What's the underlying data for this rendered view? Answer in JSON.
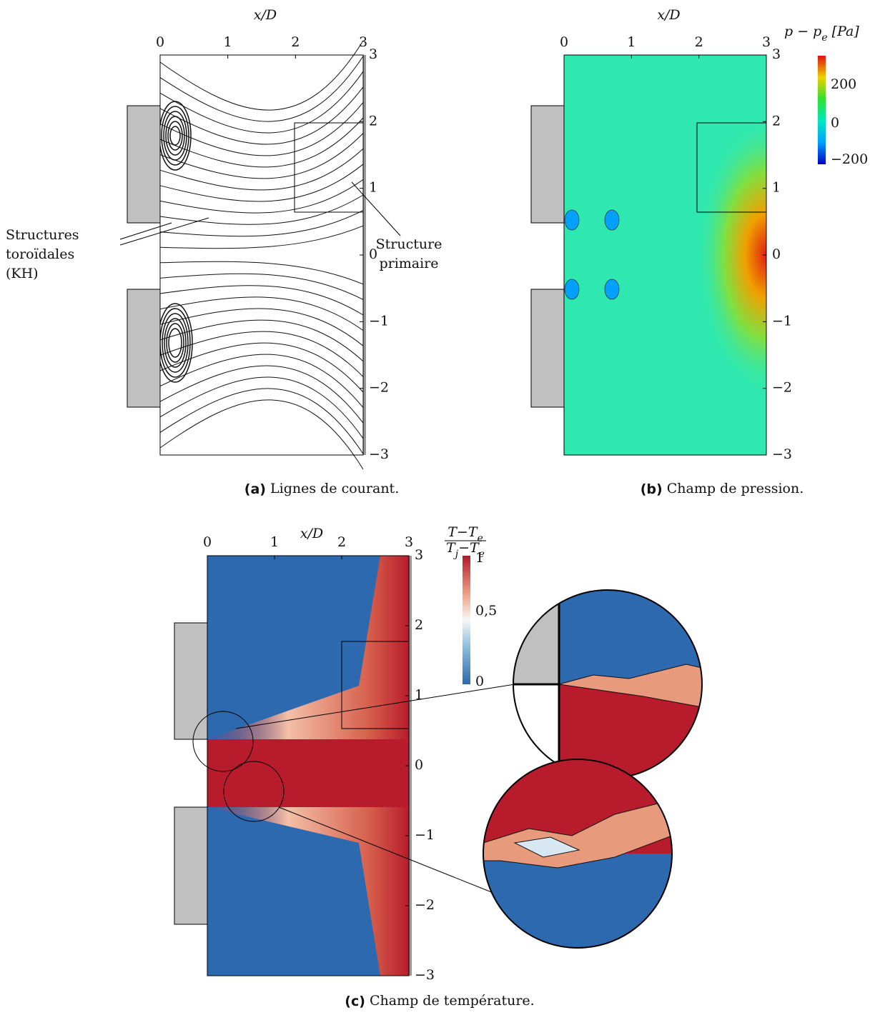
{
  "panels": [
    {
      "xlabel": "x/D",
      "xticks": [
        "0",
        "1",
        "2",
        "3"
      ],
      "yticks": [
        "3",
        "2",
        "1",
        "0",
        "−1",
        "−2",
        "−3"
      ],
      "annotations": [
        {
          "lines": [
            "Structures",
            "toroïdales",
            "(KH)"
          ]
        },
        {
          "lines": [
            "Structure",
            "primaire"
          ]
        }
      ],
      "caption": {
        "label": "(a)",
        "text": "Lignes de courant."
      }
    },
    {
      "xlabel": "x/D",
      "xticks": [
        "0",
        "1",
        "2",
        "3"
      ],
      "yticks": [
        "3",
        "2",
        "1",
        "0",
        "−1",
        "−2",
        "−3"
      ],
      "colorbar": {
        "title": [
          "p − p",
          "e",
          " [Pa]"
        ],
        "ticks": [
          "200",
          "0",
          "−200"
        ]
      },
      "caption": {
        "label": "(b)",
        "text": "Champ de pression."
      }
    },
    {
      "xlabel": "x/D",
      "xticks": [
        "0",
        "1",
        "2",
        "3"
      ],
      "yticks": [
        "3",
        "2",
        "1",
        "0",
        "−1",
        "−2",
        "−3"
      ],
      "colorbar": {
        "numerator": [
          "T−T",
          "e"
        ],
        "denominator": [
          "T",
          "j",
          "−T",
          "e"
        ],
        "ticks": [
          "1",
          "0,5",
          "0"
        ]
      },
      "caption": {
        "label": "(c)",
        "text": "Champ de température."
      }
    }
  ]
}
